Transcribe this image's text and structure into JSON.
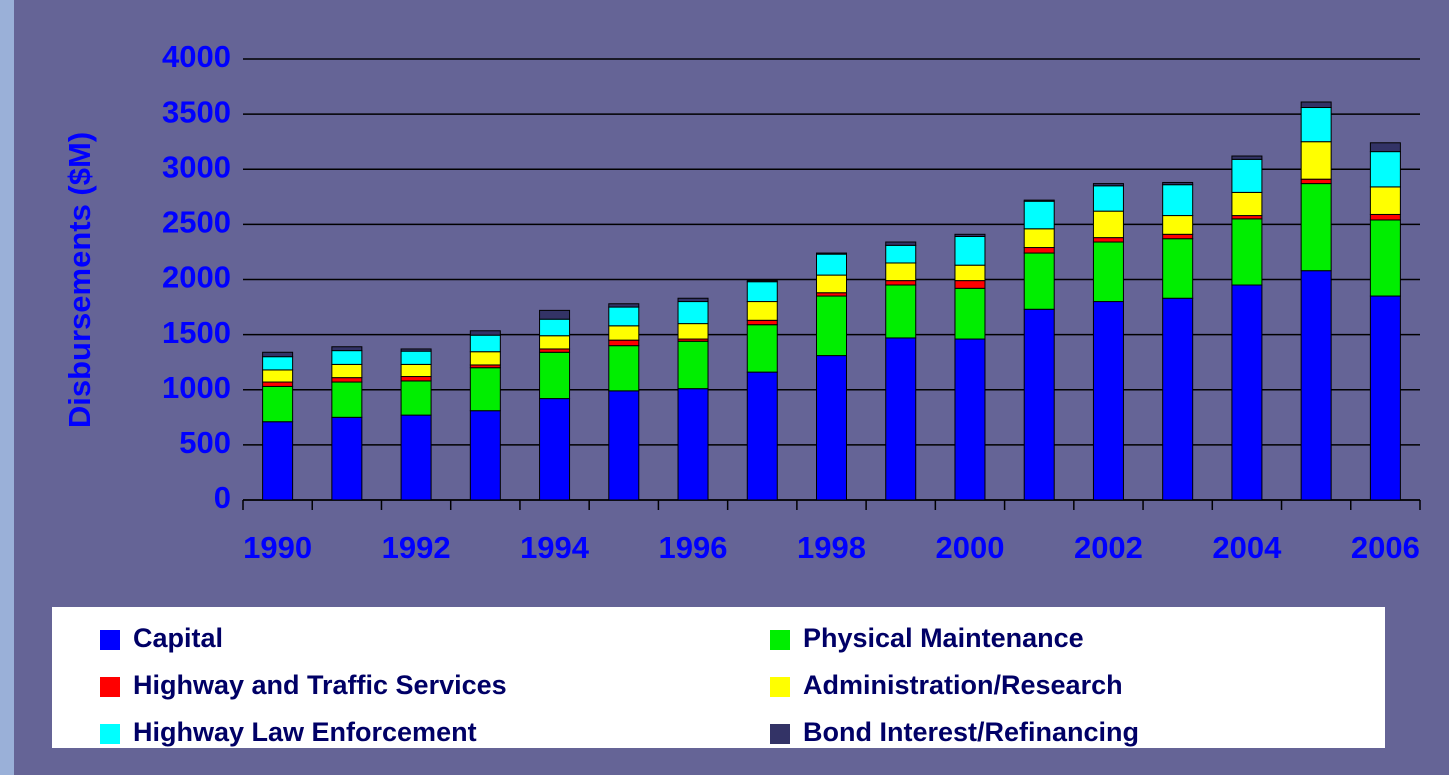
{
  "chart_data": {
    "type": "stacked_bar",
    "y_label": "Disbursements ($M)",
    "categories": [
      "1990",
      null,
      "1992",
      null,
      "1994",
      null,
      "1996",
      null,
      "1998",
      null,
      "2000",
      null,
      "2002",
      null,
      "2004",
      null,
      "2006"
    ],
    "series": [
      {
        "name": "Capital",
        "color": "#0000ff",
        "values": [
          710,
          750,
          770,
          810,
          920,
          990,
          1010,
          1160,
          1310,
          1470,
          1460,
          1730,
          1800,
          1830,
          1950,
          2080,
          1850
        ]
      },
      {
        "name": "Physical Maintenance",
        "color": "#00ee00",
        "values": [
          320,
          320,
          310,
          390,
          420,
          410,
          430,
          430,
          540,
          480,
          460,
          510,
          540,
          540,
          600,
          790,
          690
        ]
      },
      {
        "name": "Highway and Traffic Services",
        "color": "#ff0000",
        "values": [
          40,
          40,
          40,
          25,
          30,
          50,
          20,
          40,
          30,
          40,
          70,
          50,
          40,
          40,
          30,
          40,
          50
        ]
      },
      {
        "name": "Administration/Research",
        "color": "#ffff00",
        "values": [
          110,
          120,
          110,
          120,
          120,
          130,
          140,
          170,
          160,
          160,
          140,
          170,
          240,
          170,
          210,
          340,
          250
        ]
      },
      {
        "name": "Highway Law Enforcement",
        "color": "#00ffff",
        "values": [
          120,
          125,
          120,
          150,
          150,
          170,
          200,
          180,
          190,
          160,
          260,
          250,
          230,
          280,
          300,
          310,
          320
        ]
      },
      {
        "name": "Bond Interest/Refinancing",
        "color": "#333366",
        "values": [
          40,
          35,
          20,
          40,
          80,
          30,
          30,
          10,
          10,
          30,
          20,
          10,
          20,
          20,
          30,
          50,
          80
        ]
      }
    ],
    "ylim": [
      0,
      4000
    ],
    "yticks": [
      0,
      500,
      1000,
      1500,
      2000,
      2500,
      3000,
      3500,
      4000
    ],
    "grid": true
  }
}
